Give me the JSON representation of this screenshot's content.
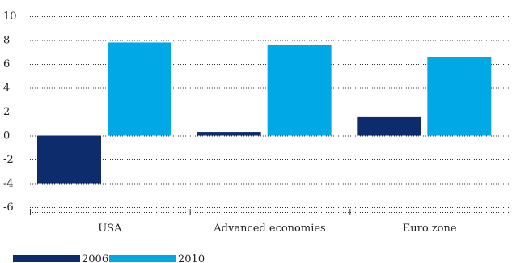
{
  "chart_data": {
    "type": "bar",
    "categories": [
      "USA",
      "Advanced economies",
      "Euro zone"
    ],
    "series": [
      {
        "name": "2006",
        "values": [
          -4.0,
          0.3,
          1.6
        ],
        "color": "#0c2c6b"
      },
      {
        "name": "2010",
        "values": [
          7.8,
          7.6,
          6.6
        ],
        "color": "#00a9e6"
      }
    ],
    "ylim": [
      -6,
      10
    ],
    "yticks": [
      -6,
      -4,
      -2,
      0,
      2,
      4,
      6,
      8,
      10
    ],
    "grid": "dotted-horizontal",
    "legend": "bottom-left"
  }
}
